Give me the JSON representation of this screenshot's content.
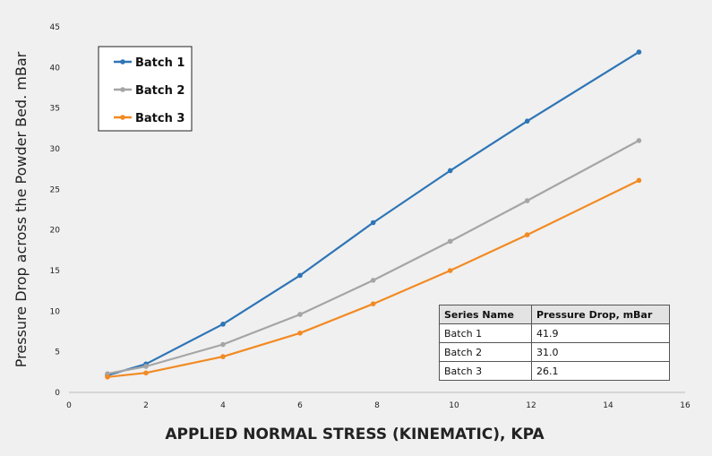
{
  "chart_data": {
    "type": "line",
    "title": "",
    "xlabel": "APPLIED NORMAL STRESS (KINEMATIC), KPA",
    "ylabel": "Pressure Drop across the Powder Bed. mBar",
    "xlim": [
      0,
      16
    ],
    "ylim": [
      0,
      45
    ],
    "xticks": [
      0,
      2,
      4,
      6,
      8,
      10,
      12,
      14,
      16
    ],
    "yticks": [
      0,
      5,
      10,
      15,
      20,
      25,
      30,
      35,
      40,
      45
    ],
    "legend_position": "top-left",
    "series": [
      {
        "name": "Batch 1",
        "color": "#2e75b6",
        "x": [
          1.0,
          2.0,
          4.0,
          6.0,
          7.9,
          9.9,
          11.9,
          14.8
        ],
        "y": [
          2.1,
          3.5,
          8.4,
          14.4,
          20.9,
          27.3,
          33.4,
          41.9
        ]
      },
      {
        "name": "Batch 2",
        "color": "#a5a5a5",
        "x": [
          1.0,
          2.0,
          4.0,
          6.0,
          7.9,
          9.9,
          11.9,
          14.8
        ],
        "y": [
          2.3,
          3.2,
          5.9,
          9.6,
          13.8,
          18.6,
          23.6,
          31.0
        ]
      },
      {
        "name": "Batch 3",
        "color": "#f28a22",
        "x": [
          1.0,
          2.0,
          4.0,
          6.0,
          7.9,
          9.9,
          11.9,
          14.8
        ],
        "y": [
          1.9,
          2.4,
          4.4,
          7.3,
          10.9,
          15.0,
          19.4,
          26.1
        ]
      }
    ],
    "table": {
      "headers": [
        "Series Name",
        "Pressure Drop, mBar"
      ],
      "rows": [
        [
          "Batch 1",
          "41.9"
        ],
        [
          "Batch 2",
          "31.0"
        ],
        [
          "Batch 3",
          "26.1"
        ]
      ]
    }
  }
}
